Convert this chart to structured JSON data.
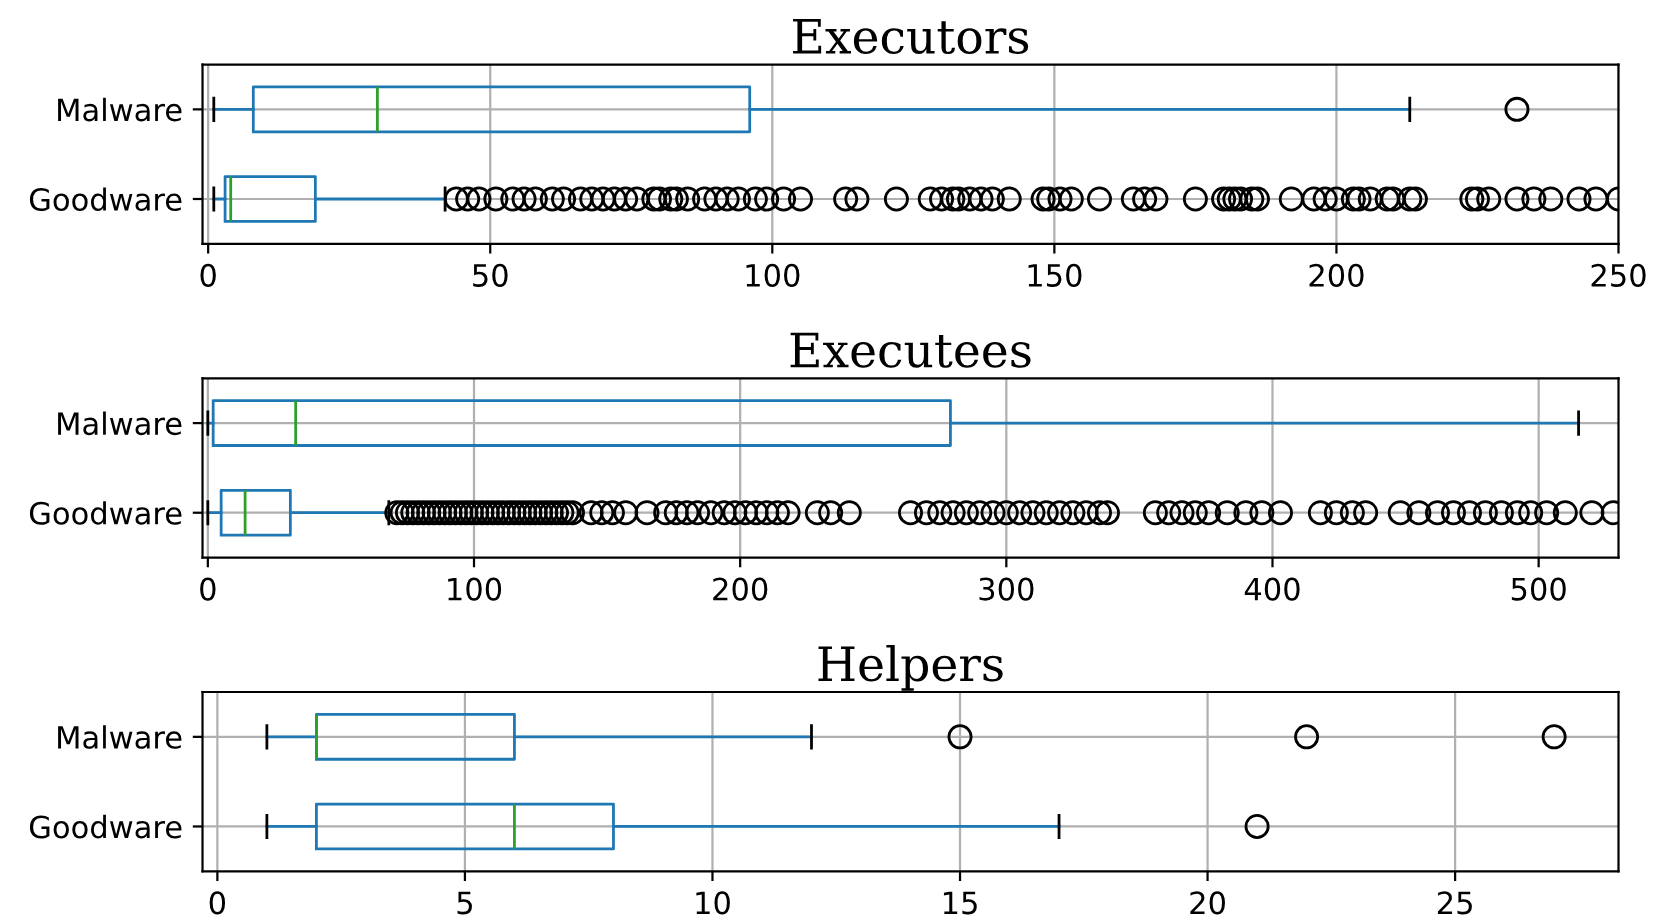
{
  "chart_data": [
    {
      "type": "box",
      "orientation": "horizontal",
      "title": "Executors",
      "categories": [
        "Malware",
        "Goodware"
      ],
      "xlim": [
        -1,
        250
      ],
      "xticks": [
        0,
        50,
        100,
        150,
        200,
        250
      ],
      "grid": true,
      "series": [
        {
          "color": "#1f77b4",
          "boxes": [
            {
              "low": 1,
              "q1": 8,
              "median": 30,
              "q3": 96,
              "high": 213,
              "outliers": [
                232
              ]
            },
            {
              "low": 1,
              "q1": 3,
              "median": 4,
              "q3": 19,
              "high": 42,
              "outliers": [
                44,
                46,
                48,
                51,
                54,
                56,
                58,
                61,
                63,
                66,
                68,
                70,
                72,
                74,
                76,
                79,
                80,
                82,
                83,
                85,
                88,
                90,
                92,
                94,
                97,
                99,
                102,
                105,
                113,
                115,
                122,
                128,
                130,
                132,
                133,
                135,
                137,
                139,
                142,
                148,
                149,
                151,
                153,
                158,
                164,
                166,
                168,
                175,
                180,
                181,
                182,
                183,
                185,
                186,
                192,
                196,
                198,
                200,
                203,
                204,
                206,
                209,
                210,
                213,
                214,
                224,
                225,
                227,
                232,
                235,
                238,
                243,
                246,
                250
              ]
            }
          ]
        }
      ]
    },
    {
      "type": "box",
      "orientation": "horizontal",
      "title": "Executees",
      "categories": [
        "Malware",
        "Goodware"
      ],
      "xlim": [
        -2,
        530
      ],
      "xticks": [
        0,
        100,
        200,
        300,
        400,
        500
      ],
      "grid": true,
      "series": [
        {
          "color": "#1f77b4",
          "boxes": [
            {
              "low": 0,
              "q1": 2,
              "median": 33,
              "q3": 279,
              "high": 515
            },
            {
              "low": 0,
              "q1": 5,
              "median": 14,
              "q3": 31,
              "high": 68,
              "outliers": [
                71,
                73,
                75,
                77,
                79,
                81,
                83,
                85,
                87,
                89,
                91,
                93,
                95,
                97,
                99,
                101,
                103,
                105,
                107,
                109,
                111,
                113,
                115,
                117,
                119,
                121,
                123,
                125,
                127,
                129,
                131,
                133,
                135,
                137,
                144,
                148,
                152,
                157,
                165,
                172,
                176,
                180,
                184,
                189,
                194,
                198,
                202,
                206,
                210,
                214,
                218,
                229,
                234,
                241,
                264,
                270,
                275,
                280,
                285,
                290,
                295,
                300,
                305,
                310,
                315,
                320,
                325,
                330,
                335,
                338,
                356,
                361,
                366,
                371,
                376,
                383,
                390,
                396,
                403,
                418,
                424,
                430,
                435,
                448,
                455,
                462,
                468,
                474,
                480,
                486,
                492,
                497,
                503,
                510,
                520,
                528
              ]
            }
          ]
        }
      ]
    },
    {
      "type": "box",
      "orientation": "horizontal",
      "title": "Helpers",
      "categories": [
        "Malware",
        "Goodware"
      ],
      "xlim": [
        -0.3,
        28.3
      ],
      "xticks": [
        0,
        5,
        10,
        15,
        20,
        25
      ],
      "grid": true,
      "series": [
        {
          "color": "#1f77b4",
          "boxes": [
            {
              "low": 1,
              "q1": 2,
              "median": 2,
              "q3": 6,
              "high": 12,
              "outliers": [
                15,
                22,
                27
              ]
            },
            {
              "low": 1,
              "q1": 2,
              "median": 6,
              "q3": 8,
              "high": 17,
              "outliers": [
                21
              ]
            }
          ]
        }
      ]
    }
  ]
}
